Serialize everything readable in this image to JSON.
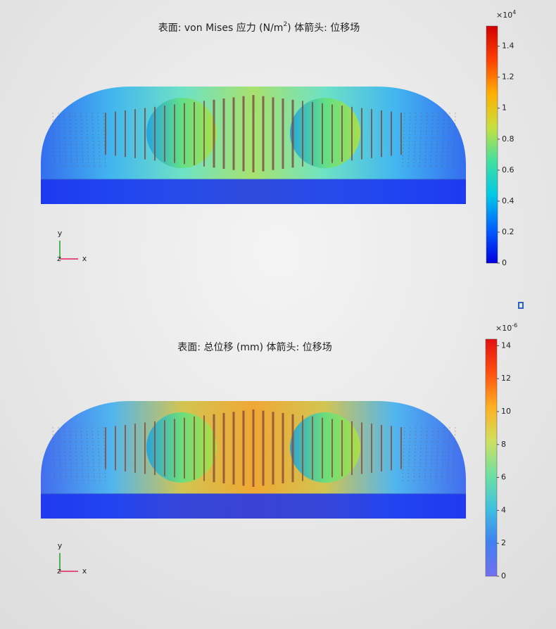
{
  "chart_data": [
    {
      "type": "colorbar",
      "title": "表面: von Mises 应力 (N/m",
      "title_sup": "2",
      "title_after": ")  体箭头: 位移场",
      "scale_label": "×10",
      "scale_exponent": "4",
      "ylim": [
        0,
        1.53
      ],
      "yticks": [
        0,
        0.2,
        0.4,
        0.6,
        0.8,
        1,
        1.2,
        1.4
      ],
      "colors": [
        "#0000e0",
        "#0060ff",
        "#00c8e8",
        "#40e0a0",
        "#c8e040",
        "#ffb000",
        "#ff4000",
        "#d00000"
      ],
      "axis_triad": [
        "y",
        "z",
        "x"
      ]
    },
    {
      "type": "colorbar",
      "title": "表面: 总位移 (mm)  体箭头: 位移场",
      "scale_label": "×10",
      "scale_exponent": "-6",
      "ylim": [
        0,
        14.4
      ],
      "yticks": [
        0,
        2,
        4,
        6,
        8,
        10,
        12,
        14
      ],
      "colors": [
        "#7070f0",
        "#4080f0",
        "#40c0e0",
        "#70e0a0",
        "#d0e060",
        "#ffb020",
        "#ff5010",
        "#e01010"
      ],
      "axis_triad": [
        "y",
        "z",
        "x"
      ]
    }
  ]
}
